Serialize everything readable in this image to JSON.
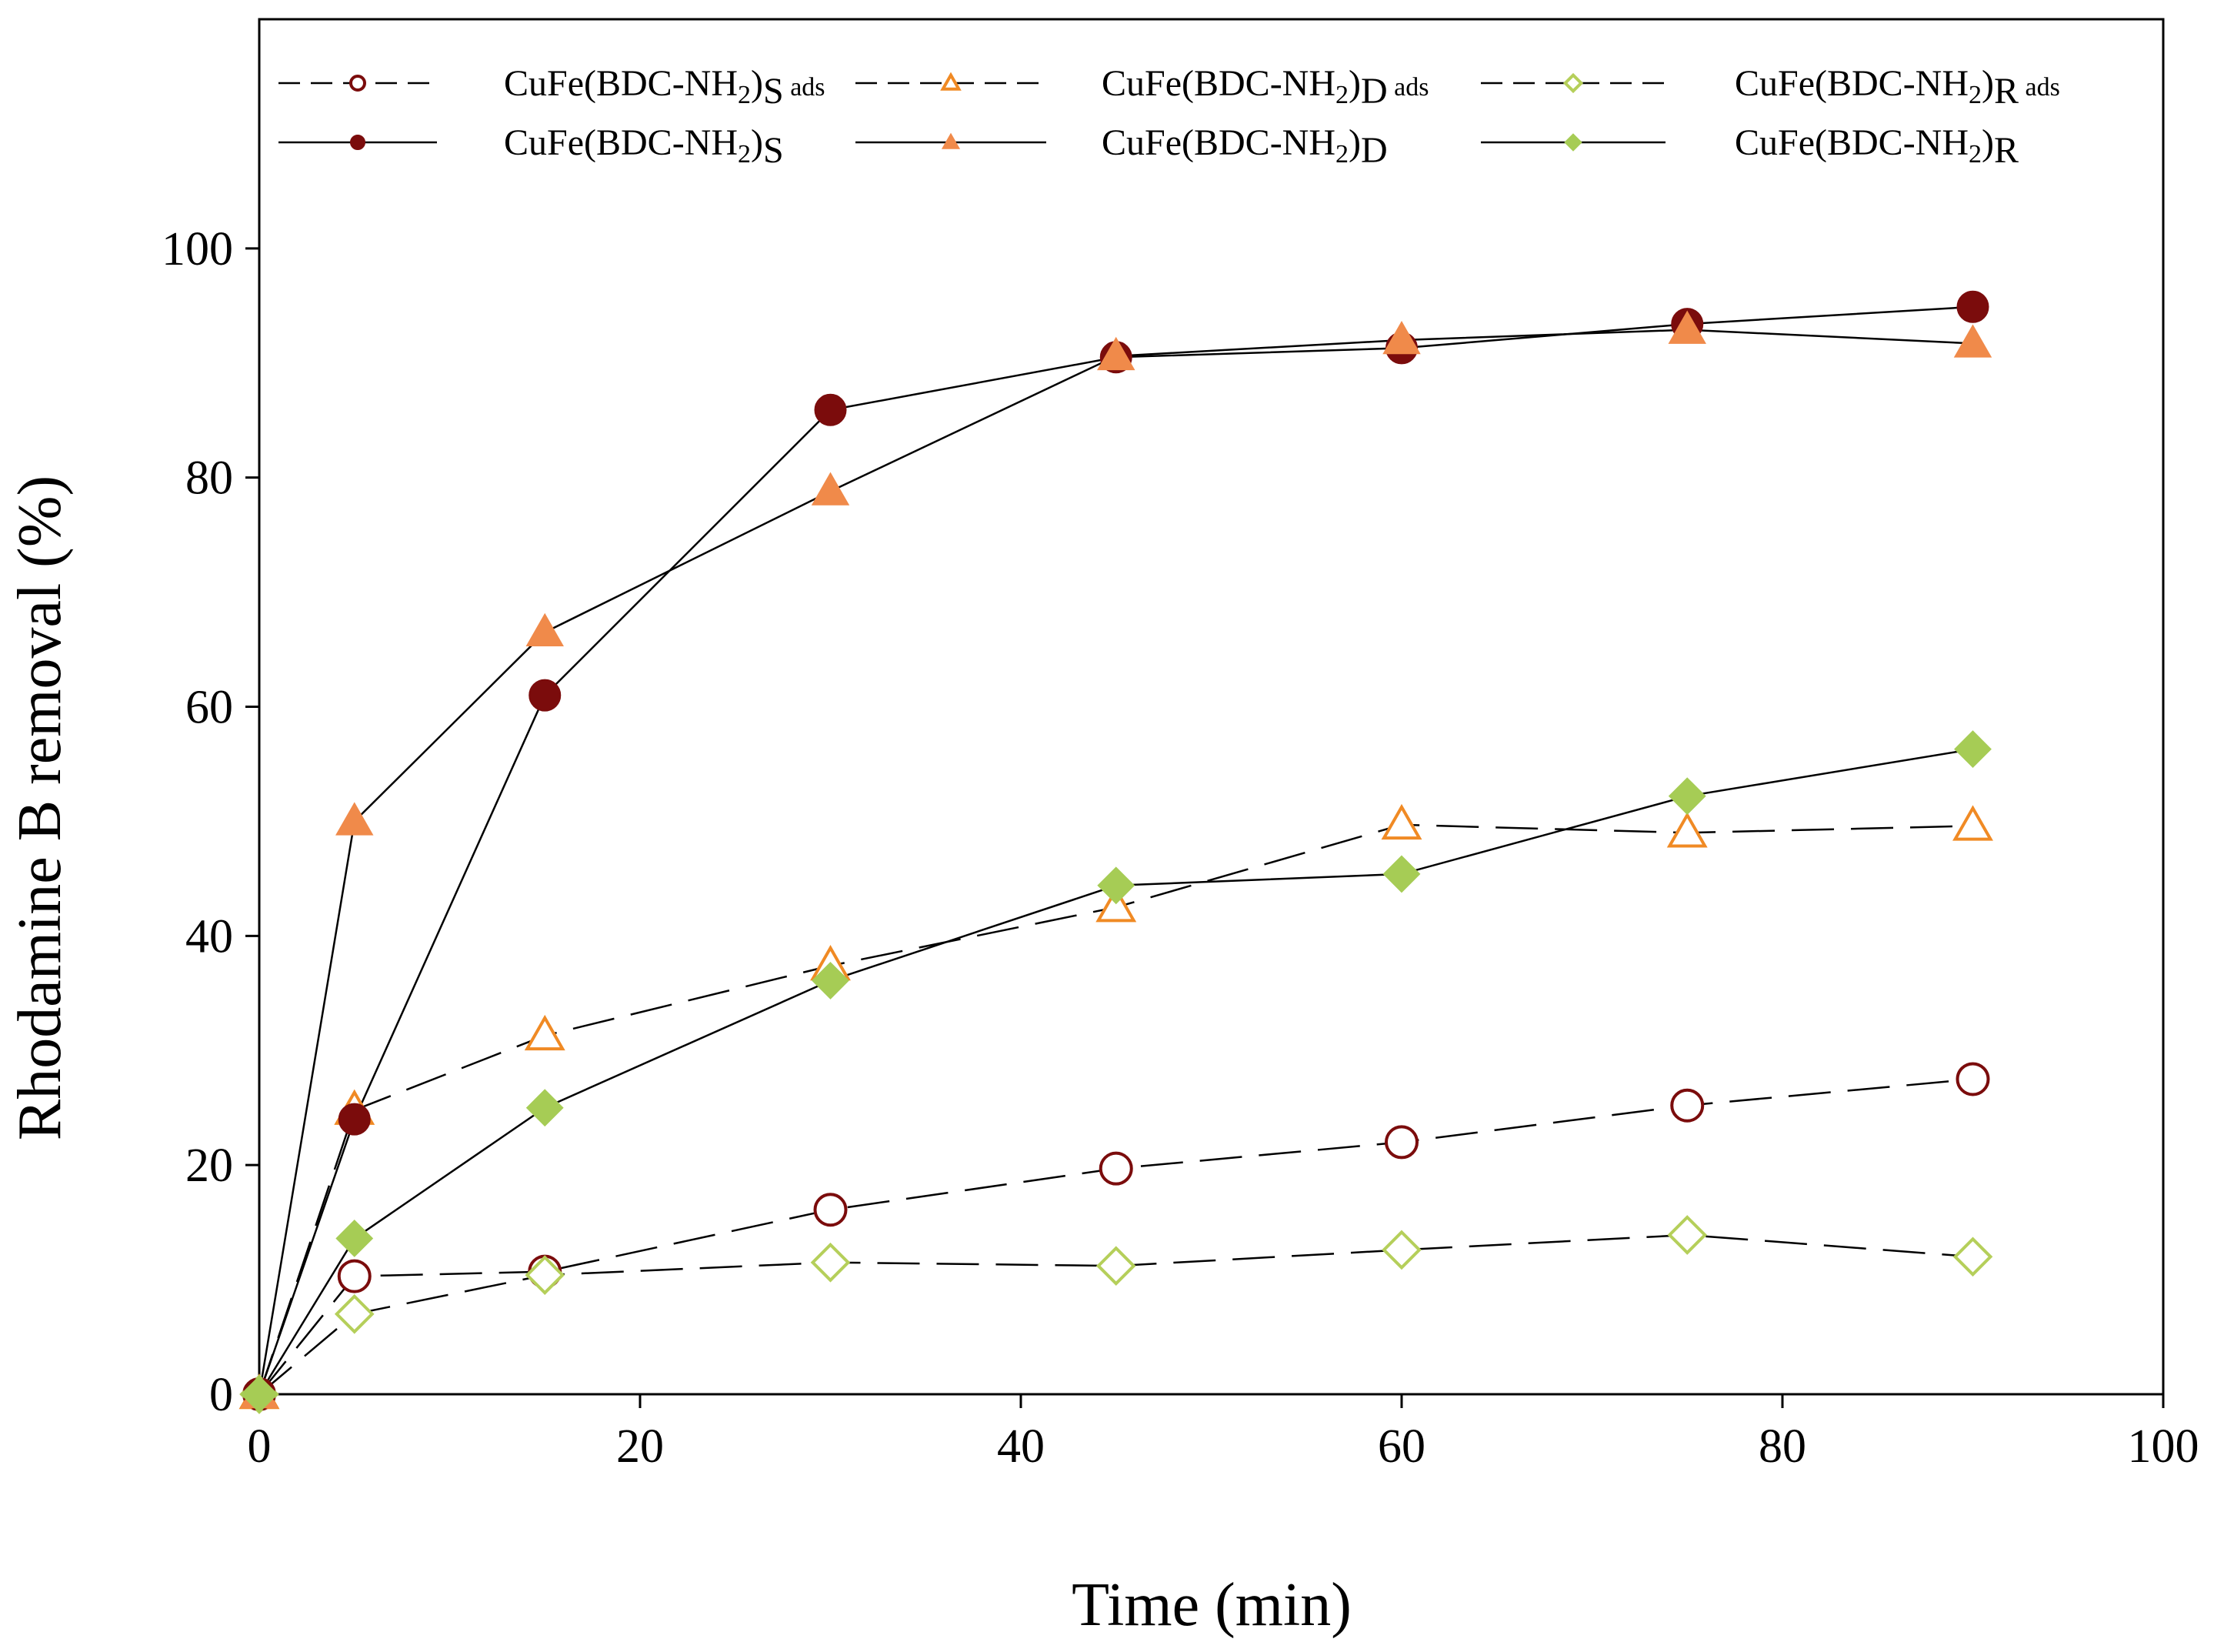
{
  "chart_data": {
    "type": "line",
    "title": "",
    "xlabel": "Time (min)",
    "ylabel": "Rhodamine B removal (%)",
    "xlim": [
      0,
      100
    ],
    "ylim": [
      0,
      120
    ],
    "xticks": [
      0,
      20,
      40,
      60,
      80,
      100
    ],
    "yticks": [
      0,
      20,
      40,
      60,
      80,
      100
    ],
    "grid": false,
    "legend_position": "top",
    "x": [
      0,
      5,
      15,
      30,
      45,
      60,
      75,
      90
    ],
    "series": [
      {
        "name": "CuFe(BDC-NH2)S ads",
        "label_main": "CuFe(BDC-NH",
        "label_sub1": "2",
        "label_mid": ")",
        "label_sub2": "S",
        "label_suffix": " ads",
        "line": "dashed",
        "marker": "circle",
        "filled": false,
        "color": "#7b0c0c",
        "values": [
          0,
          10.3,
          10.7,
          16.1,
          19.7,
          22.0,
          25.2,
          27.5
        ]
      },
      {
        "name": "CuFe(BDC-NH2)D ads",
        "label_main": "CuFe(BDC-NH",
        "label_sub1": "2",
        "label_mid": ")",
        "label_sub2": "D",
        "label_suffix": " ads",
        "line": "dashed",
        "marker": "triangle",
        "filled": false,
        "color": "#f08a24",
        "values": [
          0,
          24.8,
          31.3,
          37.4,
          42.5,
          49.7,
          49.0,
          49.6
        ]
      },
      {
        "name": "CuFe(BDC-NH2)R ads",
        "label_main": "CuFe(BDC-NH",
        "label_sub1": "2",
        "label_mid": ")",
        "label_sub2": "R",
        "label_suffix": " ads",
        "line": "dashed",
        "marker": "diamond",
        "filled": false,
        "color": "#b5cf5a",
        "values": [
          0,
          7.0,
          10.4,
          11.5,
          11.2,
          12.6,
          13.9,
          12.0
        ]
      },
      {
        "name": "CuFe(BDC-NH2)S",
        "label_main": "CuFe(BDC-NH",
        "label_sub1": "2",
        "label_mid": ")",
        "label_sub2": "S",
        "label_suffix": "",
        "line": "solid",
        "marker": "circle",
        "filled": true,
        "color": "#7b0c0c",
        "values": [
          0,
          24.0,
          61.0,
          85.9,
          90.5,
          91.3,
          93.4,
          94.9
        ]
      },
      {
        "name": "CuFe(BDC-NH2)D",
        "label_main": "CuFe(BDC-NH",
        "label_sub1": "2",
        "label_mid": ")",
        "label_sub2": "D",
        "label_suffix": "",
        "line": "solid",
        "marker": "triangle",
        "filled": true,
        "color": "#f08a4a",
        "values": [
          0,
          50.0,
          66.5,
          78.8,
          90.6,
          92.0,
          92.9,
          91.7
        ]
      },
      {
        "name": "CuFe(BDC-NH2)R",
        "label_main": "CuFe(BDC-NH",
        "label_sub1": "2",
        "label_mid": ")",
        "label_sub2": "R",
        "label_suffix": "",
        "line": "solid",
        "marker": "diamond",
        "filled": true,
        "color": "#a6cc55",
        "values": [
          0,
          13.6,
          25.0,
          36.1,
          44.4,
          45.4,
          52.2,
          56.3
        ]
      }
    ]
  }
}
